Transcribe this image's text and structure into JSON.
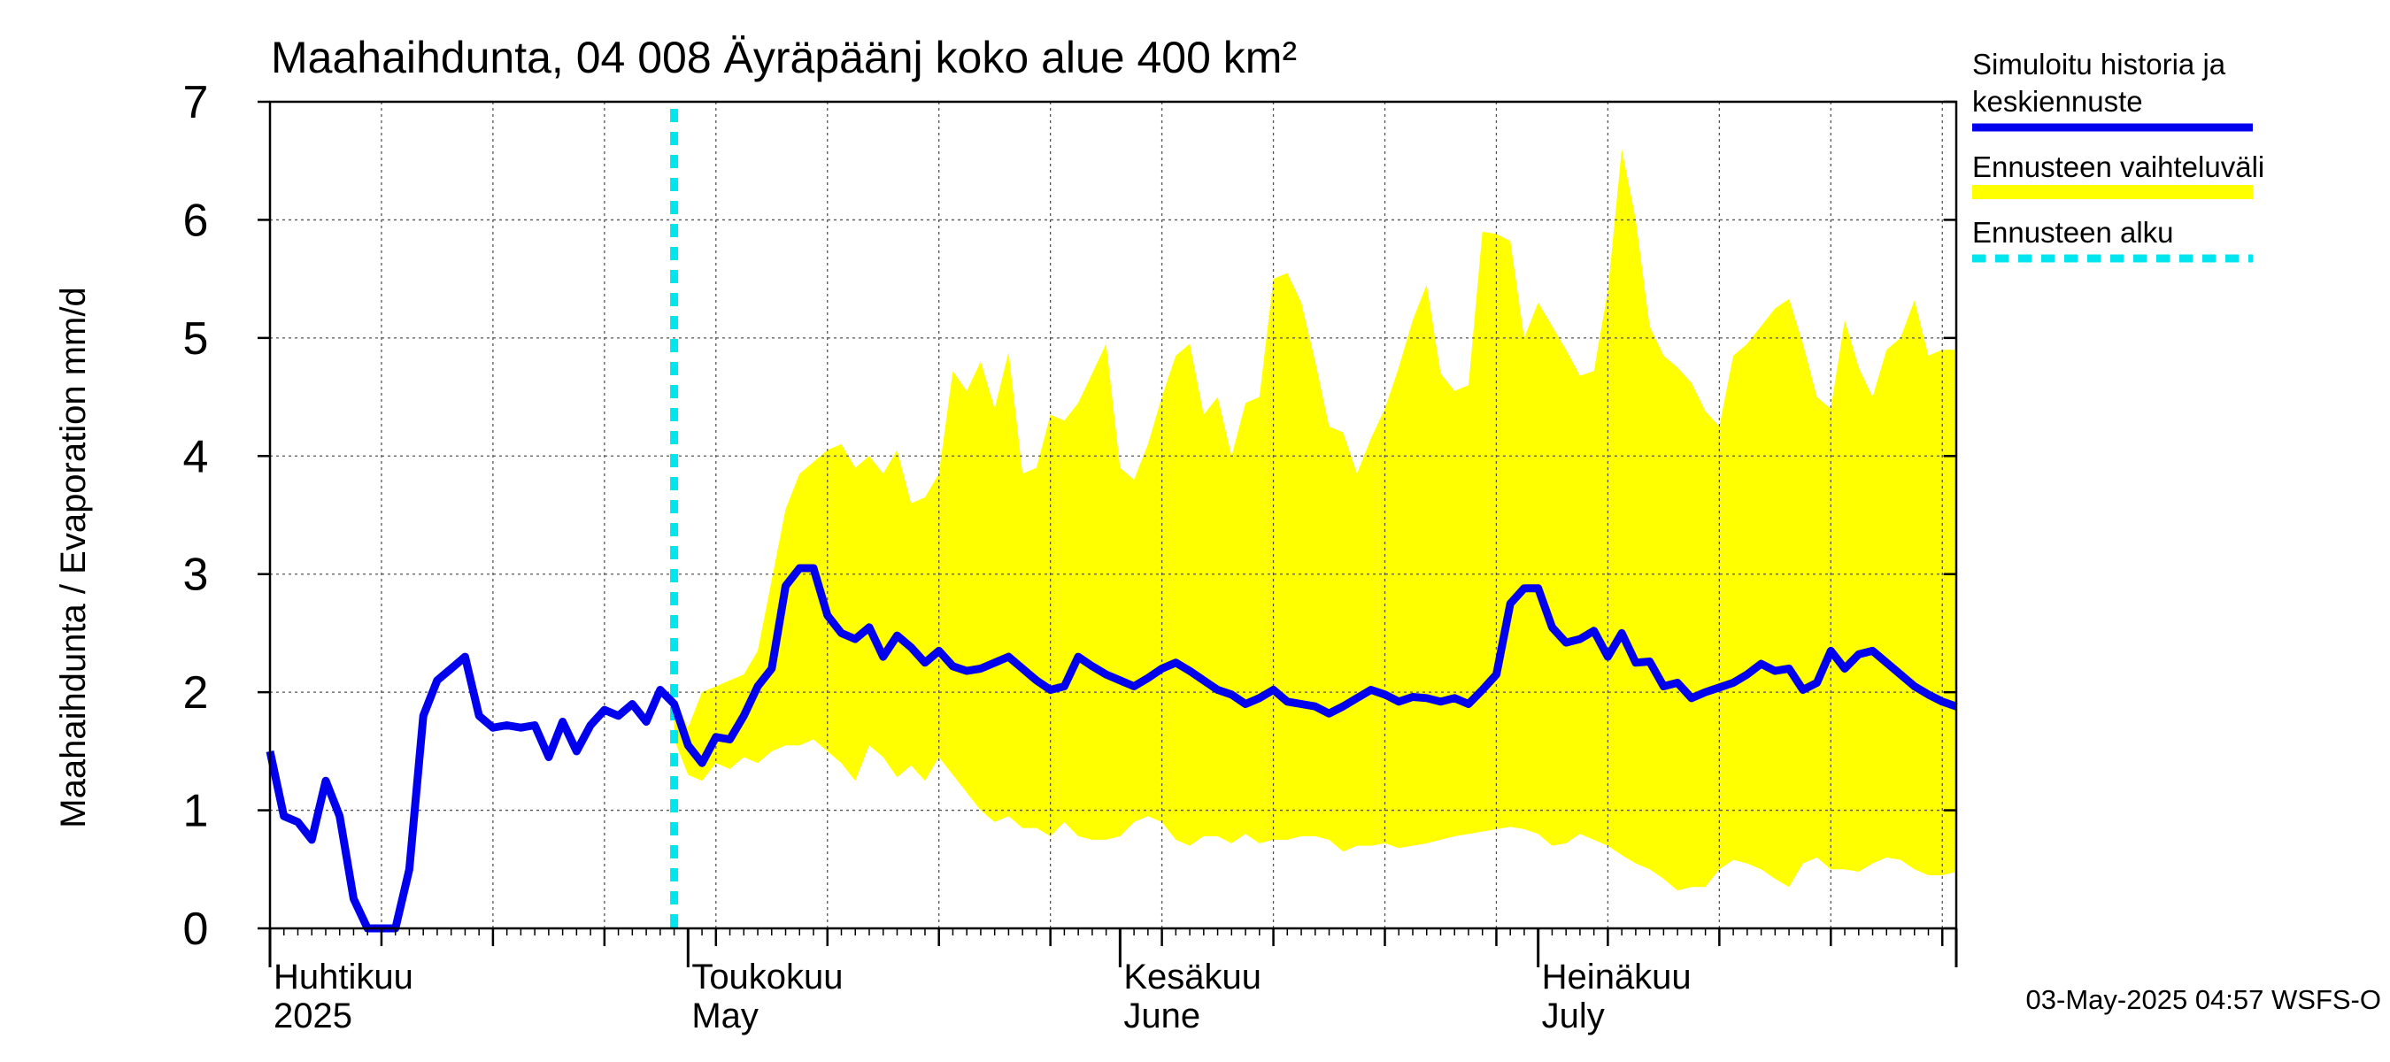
{
  "chart_data": {
    "type": "line",
    "title": "Maahaihdunta, 04 008 Äyräpäänj koko alue 400 km²",
    "ylabel": "Maahaihdunta / Evaporation   mm/d",
    "ylim": [
      0,
      7
    ],
    "yticks": [
      0,
      1,
      2,
      3,
      4,
      5,
      6,
      7
    ],
    "xlim": [
      "2025-04-01",
      "2025-07-31"
    ],
    "grid": true,
    "legend_position": "right",
    "forecast_start": "2025-04-30",
    "month_labels": [
      {
        "date": "2025-04-01",
        "line1": "Huhtikuu",
        "line2": "2025"
      },
      {
        "date": "2025-05-01",
        "line1": "Toukokuu",
        "line2": "May"
      },
      {
        "date": "2025-06-01",
        "line1": "Kesäkuu",
        "line2": "June"
      },
      {
        "date": "2025-07-01",
        "line1": "Heinäkuu",
        "line2": "July"
      }
    ],
    "legend": [
      {
        "label": "Simuloitu historia ja",
        "label2": "keskiennuste",
        "color": "#0000ee",
        "style": "solid"
      },
      {
        "label": "Ennusteen vaihteluväli",
        "color": "#ffff00",
        "style": "band"
      },
      {
        "label": "Ennusteen alku",
        "color": "#00e5ee",
        "style": "dashed"
      }
    ],
    "footer": "03-May-2025 04:57 WSFS-O",
    "series": [
      {
        "name": "Simuloitu historia ja keskiennuste",
        "color": "#0000ee",
        "x": [
          "2025-04-01",
          "2025-04-02",
          "2025-04-03",
          "2025-04-04",
          "2025-04-05",
          "2025-04-06",
          "2025-04-07",
          "2025-04-08",
          "2025-04-09",
          "2025-04-10",
          "2025-04-11",
          "2025-04-12",
          "2025-04-13",
          "2025-04-14",
          "2025-04-15",
          "2025-04-16",
          "2025-04-17",
          "2025-04-18",
          "2025-04-19",
          "2025-04-20",
          "2025-04-21",
          "2025-04-22",
          "2025-04-23",
          "2025-04-24",
          "2025-04-25",
          "2025-04-26",
          "2025-04-27",
          "2025-04-28",
          "2025-04-29",
          "2025-04-30",
          "2025-05-01",
          "2025-05-02",
          "2025-05-03",
          "2025-05-04",
          "2025-05-05",
          "2025-05-06",
          "2025-05-07",
          "2025-05-08",
          "2025-05-09",
          "2025-05-10",
          "2025-05-11",
          "2025-05-12",
          "2025-05-13",
          "2025-05-14",
          "2025-05-15",
          "2025-05-16",
          "2025-05-17",
          "2025-05-18",
          "2025-05-19",
          "2025-05-20",
          "2025-05-21",
          "2025-05-22",
          "2025-05-23",
          "2025-05-24",
          "2025-05-25",
          "2025-05-26",
          "2025-05-27",
          "2025-05-28",
          "2025-05-29",
          "2025-05-30",
          "2025-05-31",
          "2025-06-01",
          "2025-06-02",
          "2025-06-03",
          "2025-06-04",
          "2025-06-05",
          "2025-06-06",
          "2025-06-07",
          "2025-06-08",
          "2025-06-09",
          "2025-06-10",
          "2025-06-11",
          "2025-06-12",
          "2025-06-13",
          "2025-06-14",
          "2025-06-15",
          "2025-06-16",
          "2025-06-17",
          "2025-06-18",
          "2025-06-19",
          "2025-06-20",
          "2025-06-21",
          "2025-06-22",
          "2025-06-23",
          "2025-06-24",
          "2025-06-25",
          "2025-06-26",
          "2025-06-27",
          "2025-06-28",
          "2025-06-29",
          "2025-06-30",
          "2025-07-01",
          "2025-07-02",
          "2025-07-03",
          "2025-07-04",
          "2025-07-05",
          "2025-07-06",
          "2025-07-07",
          "2025-07-08",
          "2025-07-09",
          "2025-07-10",
          "2025-07-11",
          "2025-07-12",
          "2025-07-13",
          "2025-07-14",
          "2025-07-15",
          "2025-07-16",
          "2025-07-17",
          "2025-07-18",
          "2025-07-19",
          "2025-07-20",
          "2025-07-21",
          "2025-07-22",
          "2025-07-23",
          "2025-07-24",
          "2025-07-25",
          "2025-07-26",
          "2025-07-27",
          "2025-07-28",
          "2025-07-29",
          "2025-07-30",
          "2025-07-31"
        ],
        "values": [
          1.5,
          0.95,
          0.9,
          0.75,
          1.25,
          0.95,
          0.25,
          0,
          0,
          0,
          0.5,
          1.8,
          2.1,
          2.2,
          2.3,
          1.8,
          1.7,
          1.72,
          1.7,
          1.72,
          1.45,
          1.75,
          1.5,
          1.72,
          1.85,
          1.8,
          1.9,
          1.75,
          2.02,
          1.9,
          1.55,
          1.4,
          1.62,
          1.6,
          1.8,
          2.05,
          2.2,
          2.9,
          3.05,
          3.05,
          2.65,
          2.5,
          2.45,
          2.55,
          2.3,
          2.48,
          2.38,
          2.25,
          2.35,
          2.22,
          2.18,
          2.2,
          2.25,
          2.3,
          2.2,
          2.1,
          2.02,
          2.05,
          2.3,
          2.22,
          2.15,
          2.1,
          2.05,
          2.12,
          2.2,
          2.25,
          2.18,
          2.1,
          2.02,
          1.98,
          1.9,
          1.95,
          2.02,
          1.92,
          1.9,
          1.88,
          1.82,
          1.88,
          1.95,
          2.02,
          1.98,
          1.92,
          1.96,
          1.95,
          1.92,
          1.95,
          1.9,
          2.02,
          2.15,
          2.75,
          2.88,
          2.88,
          2.55,
          2.42,
          2.45,
          2.52,
          2.3,
          2.5,
          2.25,
          2.26,
          2.05,
          2.08,
          1.95,
          2.0,
          2.04,
          2.08,
          2.15,
          2.24,
          2.18,
          2.2,
          2.02,
          2.08,
          2.35,
          2.2,
          2.32,
          2.35,
          2.25,
          2.15,
          2.05,
          1.98,
          1.92,
          1.88
        ]
      },
      {
        "name": "Ennusteen vaihteluväli",
        "color": "#ffff00",
        "x": [
          "2025-04-30",
          "2025-05-01",
          "2025-05-02",
          "2025-05-03",
          "2025-05-04",
          "2025-05-05",
          "2025-05-06",
          "2025-05-07",
          "2025-05-08",
          "2025-05-09",
          "2025-05-10",
          "2025-05-11",
          "2025-05-12",
          "2025-05-13",
          "2025-05-14",
          "2025-05-15",
          "2025-05-16",
          "2025-05-17",
          "2025-05-18",
          "2025-05-19",
          "2025-05-20",
          "2025-05-21",
          "2025-05-22",
          "2025-05-23",
          "2025-05-24",
          "2025-05-25",
          "2025-05-26",
          "2025-05-27",
          "2025-05-28",
          "2025-05-29",
          "2025-05-30",
          "2025-05-31",
          "2025-06-01",
          "2025-06-02",
          "2025-06-03",
          "2025-06-04",
          "2025-06-05",
          "2025-06-06",
          "2025-06-07",
          "2025-06-08",
          "2025-06-09",
          "2025-06-10",
          "2025-06-11",
          "2025-06-12",
          "2025-06-13",
          "2025-06-14",
          "2025-06-15",
          "2025-06-16",
          "2025-06-17",
          "2025-06-18",
          "2025-06-19",
          "2025-06-20",
          "2025-06-21",
          "2025-06-22",
          "2025-06-23",
          "2025-06-24",
          "2025-06-25",
          "2025-06-26",
          "2025-06-27",
          "2025-06-28",
          "2025-06-29",
          "2025-06-30",
          "2025-07-01",
          "2025-07-02",
          "2025-07-03",
          "2025-07-04",
          "2025-07-05",
          "2025-07-06",
          "2025-07-07",
          "2025-07-08",
          "2025-07-09",
          "2025-07-10",
          "2025-07-11",
          "2025-07-12",
          "2025-07-13",
          "2025-07-14",
          "2025-07-15",
          "2025-07-16",
          "2025-07-17",
          "2025-07-18",
          "2025-07-19",
          "2025-07-20",
          "2025-07-21",
          "2025-07-22",
          "2025-07-23",
          "2025-07-24",
          "2025-07-25",
          "2025-07-26",
          "2025-07-27",
          "2025-07-28",
          "2025-07-29",
          "2025-07-30",
          "2025-07-31"
        ],
        "lower": [
          1.6,
          1.3,
          1.25,
          1.4,
          1.35,
          1.45,
          1.4,
          1.5,
          1.55,
          1.55,
          1.6,
          1.5,
          1.4,
          1.25,
          1.55,
          1.45,
          1.28,
          1.38,
          1.25,
          1.45,
          1.3,
          1.15,
          1.0,
          0.9,
          0.95,
          0.85,
          0.85,
          0.78,
          0.9,
          0.78,
          0.75,
          0.75,
          0.78,
          0.9,
          0.95,
          0.9,
          0.75,
          0.7,
          0.78,
          0.78,
          0.72,
          0.8,
          0.72,
          0.75,
          0.75,
          0.78,
          0.78,
          0.75,
          0.65,
          0.7,
          0.7,
          0.72,
          0.68,
          0.7,
          0.72,
          0.75,
          0.78,
          0.8,
          0.82,
          0.84,
          0.86,
          0.84,
          0.8,
          0.7,
          0.72,
          0.8,
          0.75,
          0.7,
          0.62,
          0.55,
          0.5,
          0.42,
          0.32,
          0.35,
          0.35,
          0.5,
          0.58,
          0.55,
          0.5,
          0.42,
          0.35,
          0.55,
          0.6,
          0.5,
          0.5,
          0.48,
          0.55,
          0.6,
          0.58,
          0.5,
          0.45,
          0.45,
          0.48
        ],
        "upper": [
          1.95,
          1.7,
          2.0,
          2.05,
          2.1,
          2.15,
          2.35,
          2.95,
          3.55,
          3.85,
          3.95,
          4.05,
          4.1,
          3.9,
          4.0,
          3.85,
          4.05,
          3.6,
          3.65,
          3.85,
          4.72,
          4.55,
          4.8,
          4.4,
          4.88,
          3.85,
          3.9,
          4.35,
          4.3,
          4.45,
          4.7,
          4.95,
          3.9,
          3.8,
          4.1,
          4.5,
          4.85,
          4.95,
          4.35,
          4.5,
          4.0,
          4.45,
          4.5,
          5.5,
          5.55,
          5.3,
          4.8,
          4.25,
          4.2,
          3.85,
          4.15,
          4.4,
          4.75,
          5.15,
          5.45,
          4.7,
          4.55,
          4.6,
          5.9,
          5.88,
          5.82,
          5.0,
          5.3,
          5.1,
          4.9,
          4.68,
          4.72,
          5.4,
          6.6,
          6.0,
          5.1,
          4.85,
          4.75,
          4.62,
          4.38,
          4.25,
          4.85,
          4.95,
          5.1,
          5.25,
          5.33,
          4.95,
          4.5,
          4.4,
          5.15,
          4.75,
          4.5,
          4.9,
          5.0,
          5.32,
          4.85,
          4.9,
          4.9
        ]
      }
    ]
  }
}
